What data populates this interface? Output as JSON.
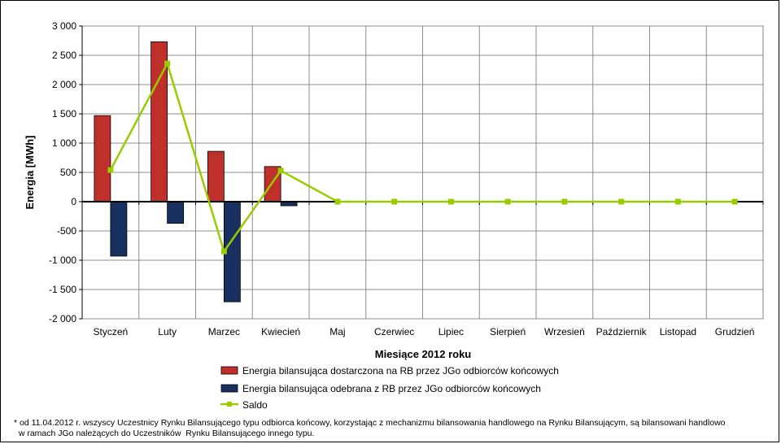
{
  "chart_data": {
    "type": "bar",
    "xlabel": "Miesiące 2012 roku",
    "ylabel": "Energia [MWh]",
    "ylim": [
      -2000,
      3000
    ],
    "y_ticks": [
      3000,
      2500,
      2000,
      1500,
      1000,
      500,
      0,
      -500,
      -1000,
      -1500,
      -2000
    ],
    "y_tick_labels": [
      "3 000",
      "2 500",
      "2 000",
      "1 500",
      "1 000",
      "500",
      "0",
      "-500",
      "-1 000",
      "-1 500",
      "-2 000"
    ],
    "categories": [
      "Styczeń",
      "Luty",
      "Marzec",
      "Kwiecień",
      "Maj",
      "Czerwiec",
      "Lipiec",
      "Sierpień",
      "Wrzesień",
      "Październik",
      "Listopad",
      "Grudzień"
    ],
    "grid": true,
    "legend_position": "bottom",
    "series": [
      {
        "name": "Energia bilansująca dostarczona na RB przez JGo odbiorców końcowych",
        "type": "bar",
        "color": "#c0302a",
        "values": [
          1470,
          2730,
          860,
          600,
          null,
          null,
          null,
          null,
          null,
          null,
          null,
          null
        ]
      },
      {
        "name": "Energia bilansująca odebrana z RB przez JGo odbiorców końcowych",
        "type": "bar",
        "color": "#17305f",
        "values": [
          -930,
          -370,
          -1710,
          -70,
          null,
          null,
          null,
          null,
          null,
          null,
          null,
          null
        ]
      },
      {
        "name": "Saldo",
        "type": "line",
        "color": "#99cc00",
        "values": [
          540,
          2360,
          -850,
          530,
          0,
          0,
          0,
          0,
          0,
          0,
          0,
          0
        ]
      }
    ]
  },
  "footnote": {
    "line1": "* od 11.04.2012 r. wszyscy Uczestnicy Rynku Bilansującego typu odbiorca końcowy, korzystając z mechanizmu bilansowania handlowego  na Rynku Bilansującym, są bilansowani handlowo",
    "line2": "  w ramach JGo należących do Uczestników  Rynku Bilansującego innego typu."
  }
}
